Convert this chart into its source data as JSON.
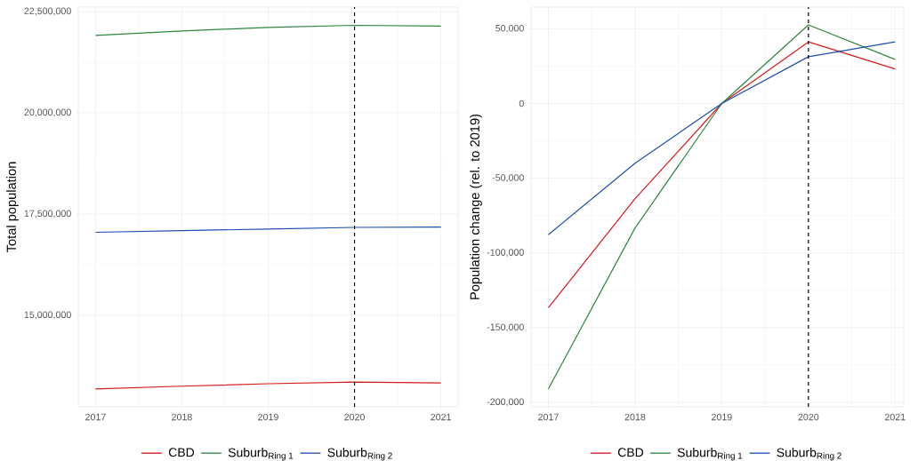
{
  "chart_data": [
    {
      "type": "line",
      "ylabel": "Total population",
      "x": [
        2017,
        2018,
        2019,
        2020,
        2021
      ],
      "xlim": [
        2016.8,
        2021.2
      ],
      "xticks": [
        2017,
        2018,
        2019,
        2020,
        2021
      ],
      "ylim": [
        12740000,
        22610000
      ],
      "yticks": [
        {
          "value": 15000000,
          "label": "15,000,000"
        },
        {
          "value": 17500000,
          "label": "17,500,000"
        },
        {
          "value": 20000000,
          "label": "20,000,000"
        },
        {
          "value": 22500000,
          "label": "22,500,000"
        }
      ],
      "grid": true,
      "legend": "bottom",
      "line_style": "solid",
      "ref_lines": [
        {
          "axis": "x",
          "value": 2020,
          "color": "#000000",
          "line_style": "dashed"
        }
      ],
      "series": [
        {
          "name": "CBD",
          "color": "#d7191c",
          "values": [
            13180000,
            13250000,
            13310000,
            13350000,
            13330000
          ]
        },
        {
          "name": "Suburb$_{Ring 1}$",
          "color": "#2e8540",
          "values": [
            21910000,
            22020000,
            22110000,
            22160000,
            22140000
          ]
        },
        {
          "name": "Suburb$_{Ring 2}$",
          "color": "#1f4fb0",
          "values": [
            17050000,
            17090000,
            17130000,
            17170000,
            17180000
          ]
        }
      ]
    },
    {
      "type": "line",
      "ylabel": "Population change (rel. to 2019)",
      "x": [
        2017,
        2018,
        2019,
        2020,
        2021
      ],
      "xlim": [
        2016.8,
        2021.1
      ],
      "xticks": [
        2017,
        2018,
        2019,
        2020,
        2021
      ],
      "ylim": [
        -203000,
        64500
      ],
      "yticks": [
        {
          "value": -200000,
          "label": "-200,000"
        },
        {
          "value": -150000,
          "label": "-150,000"
        },
        {
          "value": -100000,
          "label": "-100,000"
        },
        {
          "value": -50000,
          "label": "-50,000"
        },
        0,
        {
          "value": 50000,
          "label": "50,000"
        }
      ],
      "grid": true,
      "legend": "bottom",
      "line_style": "solid",
      "ref_lines": [
        {
          "axis": "x",
          "value": 2020,
          "color": "#000000",
          "line_style": "dashed"
        }
      ],
      "series": [
        {
          "name": "CBD",
          "color": "#d7191c",
          "values": [
            -136700,
            -63700,
            0,
            41200,
            23100
          ]
        },
        {
          "name": "Suburb$_{Ring 1}$",
          "color": "#2e8540",
          "values": [
            -191000,
            -83300,
            0,
            52600,
            29500
          ]
        },
        {
          "name": "Suburb$_{Ring 2}$",
          "color": "#1f4fb0",
          "values": [
            -87800,
            -40000,
            0,
            31300,
            41200
          ]
        }
      ]
    }
  ]
}
